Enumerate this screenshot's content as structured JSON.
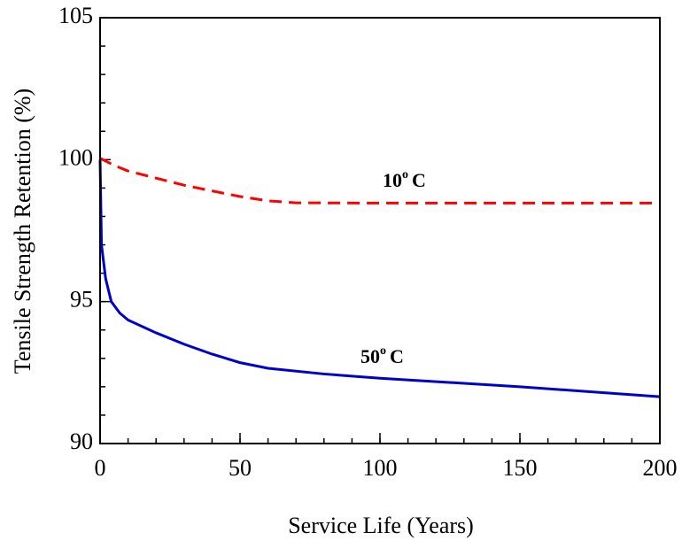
{
  "chart_data": {
    "type": "line",
    "x_label": "Service Life (Years)",
    "y_label": "Tensile Strength Retention (%)",
    "xlim": [
      0,
      200
    ],
    "xticks": [
      0,
      50,
      100,
      150,
      200
    ],
    "ylim": [
      90,
      105
    ],
    "yticks": [
      90,
      95,
      100,
      105
    ],
    "x_minor_step": 10,
    "y_minor_step": 1,
    "series": [
      {
        "name": "10° C",
        "color": "#ff0000",
        "dash": true,
        "x": [
          0,
          5,
          10,
          20,
          30,
          40,
          50,
          60,
          70,
          100,
          150,
          200
        ],
        "values": [
          100.05,
          99.8,
          99.6,
          99.35,
          99.1,
          98.9,
          98.7,
          98.55,
          98.48,
          98.47,
          98.47,
          98.47
        ]
      },
      {
        "name": "50° C",
        "color": "#0000cc",
        "dash": false,
        "x": [
          0,
          0.5,
          2,
          4,
          7,
          10,
          20,
          30,
          40,
          50,
          60,
          80,
          100,
          150,
          200
        ],
        "values": [
          100,
          97,
          95.8,
          95,
          94.6,
          94.35,
          93.9,
          93.5,
          93.15,
          92.85,
          92.65,
          92.45,
          92.3,
          92.0,
          91.65
        ]
      }
    ],
    "annotations": [
      {
        "base": "10",
        "sup": "o",
        "unit": "C"
      },
      {
        "base": "50",
        "sup": "o",
        "unit": "C"
      }
    ]
  }
}
